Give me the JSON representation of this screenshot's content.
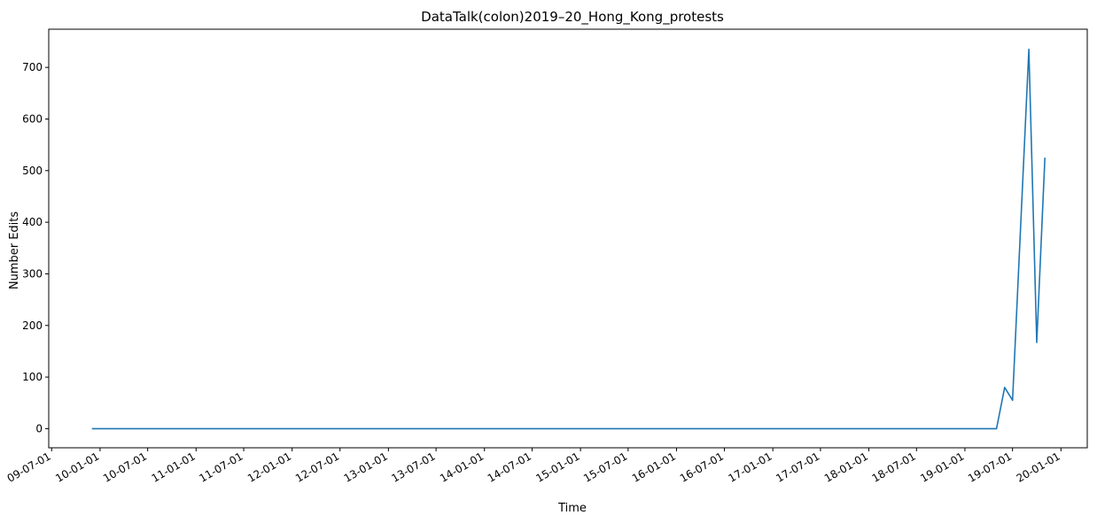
{
  "chart_data": {
    "type": "line",
    "title": "DataTalk(colon)2019–20_Hong_Kong_protests",
    "xlabel": "Time",
    "ylabel": "Number Edits",
    "x_axis": "date",
    "xlim": [
      "2009-06-20",
      "2020-04-10"
    ],
    "ylim": [
      -37,
      774
    ],
    "grid": false,
    "legend": "none",
    "x_ticks": [
      {
        "date": "2009-07-01",
        "label": "09-07-01"
      },
      {
        "date": "2010-01-01",
        "label": "10-01-01"
      },
      {
        "date": "2010-07-01",
        "label": "10-07-01"
      },
      {
        "date": "2011-01-01",
        "label": "11-01-01"
      },
      {
        "date": "2011-07-01",
        "label": "11-07-01"
      },
      {
        "date": "2012-01-01",
        "label": "12-01-01"
      },
      {
        "date": "2012-07-01",
        "label": "12-07-01"
      },
      {
        "date": "2013-01-01",
        "label": "13-01-01"
      },
      {
        "date": "2013-07-01",
        "label": "13-07-01"
      },
      {
        "date": "2014-01-01",
        "label": "14-01-01"
      },
      {
        "date": "2014-07-01",
        "label": "14-07-01"
      },
      {
        "date": "2015-01-01",
        "label": "15-01-01"
      },
      {
        "date": "2015-07-01",
        "label": "15-07-01"
      },
      {
        "date": "2016-01-01",
        "label": "16-01-01"
      },
      {
        "date": "2016-07-01",
        "label": "16-07-01"
      },
      {
        "date": "2017-01-01",
        "label": "17-01-01"
      },
      {
        "date": "2017-07-01",
        "label": "17-07-01"
      },
      {
        "date": "2018-01-01",
        "label": "18-01-01"
      },
      {
        "date": "2018-07-01",
        "label": "18-07-01"
      },
      {
        "date": "2019-01-01",
        "label": "19-01-01"
      },
      {
        "date": "2019-07-01",
        "label": "19-07-01"
      },
      {
        "date": "2020-01-01",
        "label": "20-01-01"
      }
    ],
    "y_ticks": [
      0,
      100,
      200,
      300,
      400,
      500,
      600,
      700
    ],
    "series": [
      {
        "color": "#1f77b4",
        "points": [
          {
            "x": "2009-12-01",
            "y": 0
          },
          {
            "x": "2019-05-01",
            "y": 0
          },
          {
            "x": "2019-06-01",
            "y": 80
          },
          {
            "x": "2019-07-01",
            "y": 55
          },
          {
            "x": "2019-09-01",
            "y": 735
          },
          {
            "x": "2019-10-01",
            "y": 167
          },
          {
            "x": "2019-11-01",
            "y": 525
          }
        ]
      }
    ]
  }
}
